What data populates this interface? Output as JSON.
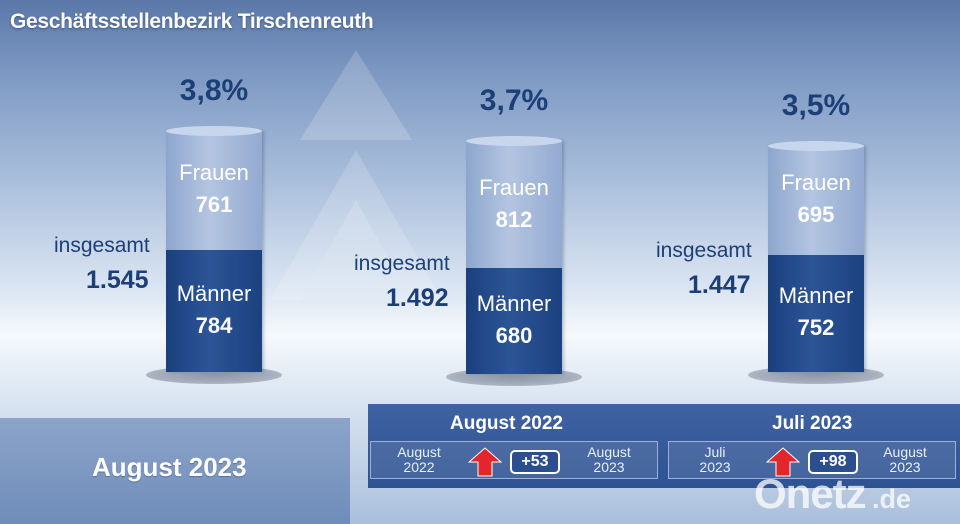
{
  "title": "Geschäftsstellenbezirk Tirschenreuth",
  "labels": {
    "frauen": "Frauen",
    "maenner": "Männer",
    "insgesamt": "insgesamt"
  },
  "current_month": "August 2023",
  "comparisons": [
    {
      "title": "August 2022",
      "from_line1": "August",
      "from_line2": "2022",
      "delta": "+53",
      "to_line1": "August",
      "to_line2": "2023",
      "direction": "up"
    },
    {
      "title": "Juli 2023",
      "from_line1": "Juli",
      "from_line2": "2023",
      "delta": "+98",
      "to_line1": "August",
      "to_line2": "2023",
      "direction": "up"
    }
  ],
  "brand": {
    "name": "Onetz",
    "suffix": ".de"
  },
  "colors": {
    "women": "#a6bbdc",
    "men": "#23498a",
    "text_dark": "#1d3f77",
    "band": "#3a5d9c",
    "arrow": "#e3262b"
  },
  "chart_data": {
    "type": "bar",
    "stacked": true,
    "categories": [
      "",
      "",
      ""
    ],
    "rates": [
      "3,8%",
      "3,7%",
      "3,5%"
    ],
    "totals_display": [
      "1.545",
      "1.492",
      "1.447"
    ],
    "totals": [
      1545,
      1492,
      1447
    ],
    "series": [
      {
        "name": "Frauen",
        "values": [
          761,
          812,
          695
        ],
        "display": [
          "761",
          "812",
          "695"
        ]
      },
      {
        "name": "Männer",
        "values": [
          784,
          680,
          752
        ],
        "display": [
          "784",
          "680",
          "752"
        ]
      }
    ]
  }
}
